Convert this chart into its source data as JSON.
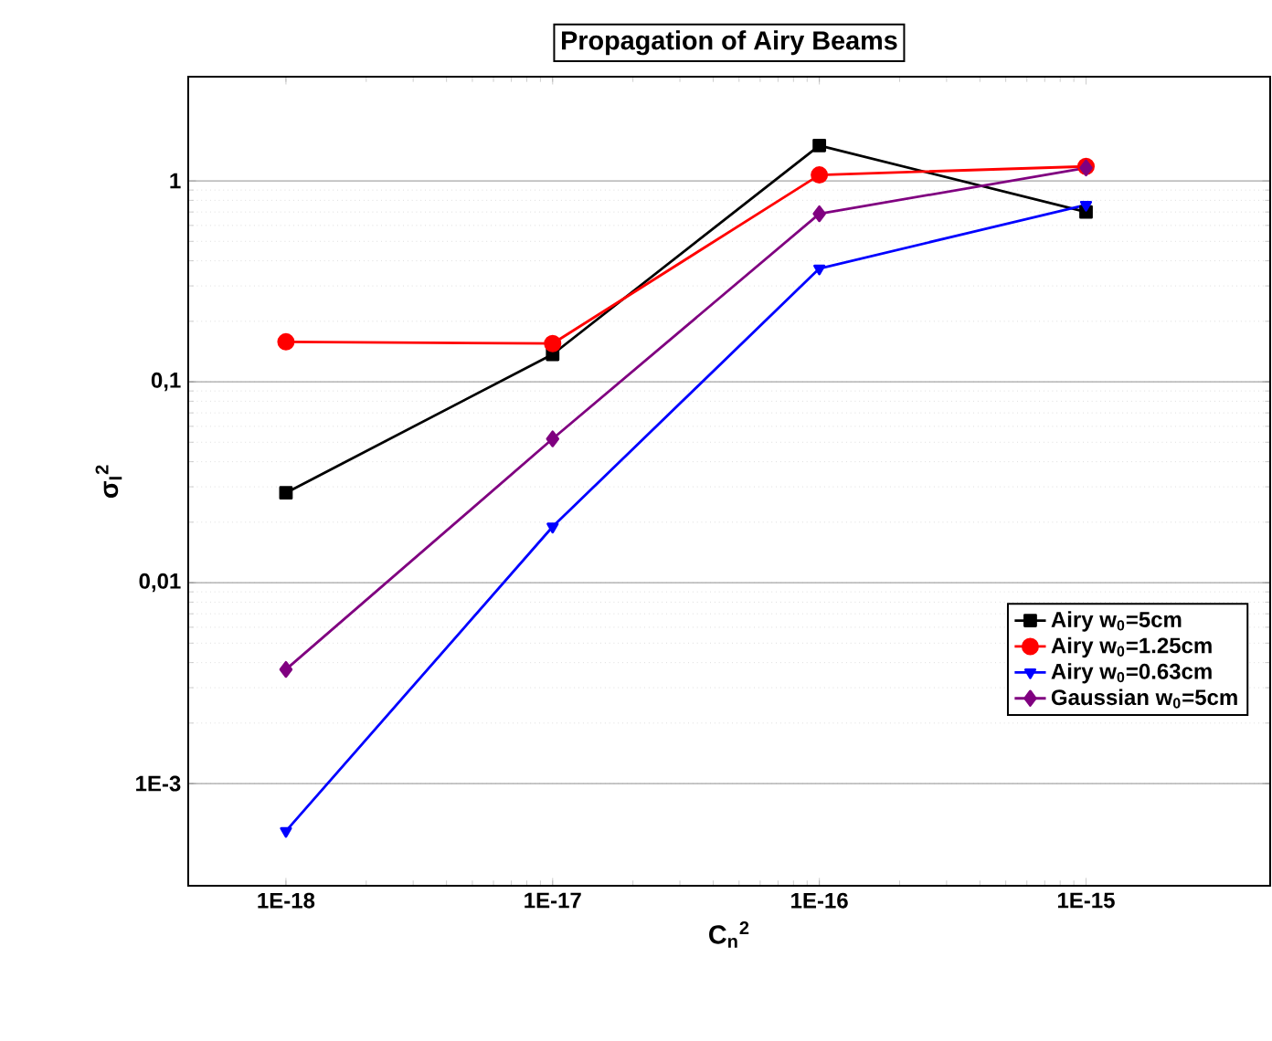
{
  "chart_data": {
    "type": "line",
    "title": "Propagation of Airy Beams",
    "xlabel": "C$_{n}$$^{2}$",
    "ylabel": "σ$_{I}$$^{2}$",
    "log": "xy",
    "grid": "y",
    "legend": "bottom right",
    "xlim": [
      4.3e-19,
      4.9e-15
    ],
    "ylim": [
      0.00031,
      3.3
    ],
    "xticks": [
      {
        "value": 1e-18,
        "label": "1E-18"
      },
      {
        "value": 1e-17,
        "label": "1E-17"
      },
      {
        "value": 1e-16,
        "label": "1E-16"
      },
      {
        "value": 1e-15,
        "label": "1E-15"
      }
    ],
    "yticks": [
      {
        "value": 0.001,
        "label": "1E-3"
      },
      {
        "value": 0.01,
        "label": "0,01"
      },
      {
        "value": 0.1,
        "label": "0,1"
      },
      {
        "value": 1,
        "label": "1"
      }
    ],
    "x": [
      1e-18,
      1e-17,
      1e-16,
      1e-15
    ],
    "series": [
      {
        "name": "Airy w$_{0}$=5cm",
        "color": "#000000",
        "marker": "square",
        "values": [
          0.028,
          0.137,
          1.5,
          0.7
        ]
      },
      {
        "name": "Airy w$_{0}$=1.25cm",
        "color": "#ff0000",
        "marker": "circle",
        "values": [
          0.158,
          0.155,
          1.07,
          1.18
        ]
      },
      {
        "name": "Airy w$_{0}$=0.63cm",
        "color": "#0000ff",
        "marker": "triangle",
        "values": [
          0.00058,
          0.019,
          0.366,
          0.76
        ]
      },
      {
        "name": "Gaussian w$_{0}$=5cm",
        "color": "#800080",
        "marker": "diamond",
        "values": [
          0.0037,
          0.052,
          0.686,
          1.16
        ]
      }
    ]
  }
}
